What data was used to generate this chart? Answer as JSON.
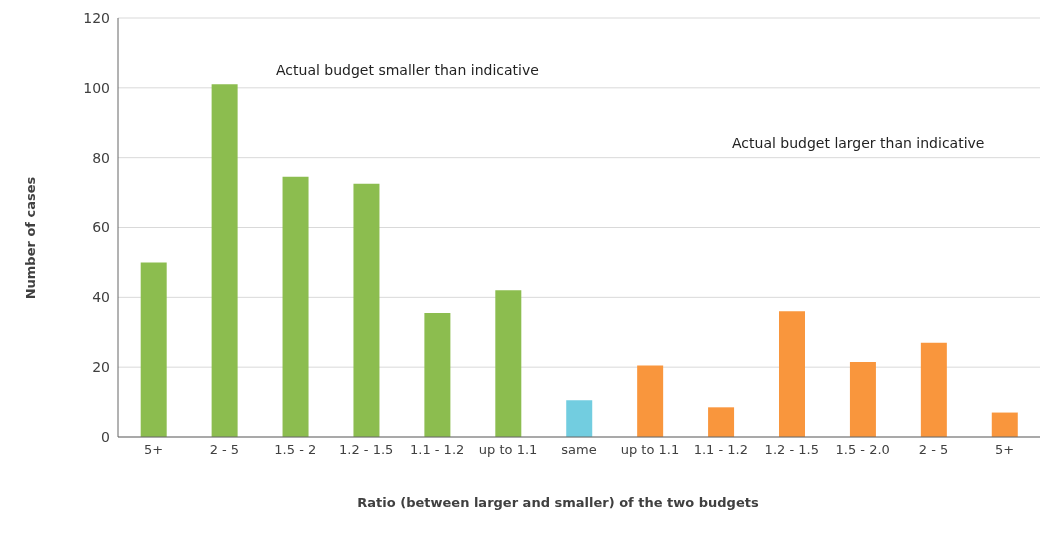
{
  "chart_data": {
    "type": "bar",
    "xlabel": "Ratio (between larger and smaller) of the two budgets",
    "ylabel": "Number of cases",
    "categories": [
      "5+",
      "2 - 5",
      "1.5 - 2",
      "1.2 - 1.5",
      "1.1 - 1.2",
      "up to 1.1",
      "same",
      "up to 1.1",
      "1.1 - 1.2",
      "1.2 - 1.5",
      "1.5 - 2.0",
      "2 - 5",
      "5+"
    ],
    "values": [
      50,
      101,
      74.5,
      72.5,
      35.5,
      42,
      10.5,
      20.5,
      8.5,
      36,
      21.5,
      27,
      7
    ],
    "colors": [
      "#8cbd4f",
      "#8cbd4f",
      "#8cbd4f",
      "#8cbd4f",
      "#8cbd4f",
      "#8cbd4f",
      "#72cde0",
      "#f9963d",
      "#f9963d",
      "#f9963d",
      "#f9963d",
      "#f9963d",
      "#f9963d"
    ],
    "ylim": [
      0,
      120
    ],
    "yticks": [
      0,
      20,
      40,
      60,
      80,
      100,
      120
    ],
    "grid": "y",
    "annotations": [
      "Actual budget smaller than indicative",
      "Actual budget larger than indicative"
    ]
  }
}
